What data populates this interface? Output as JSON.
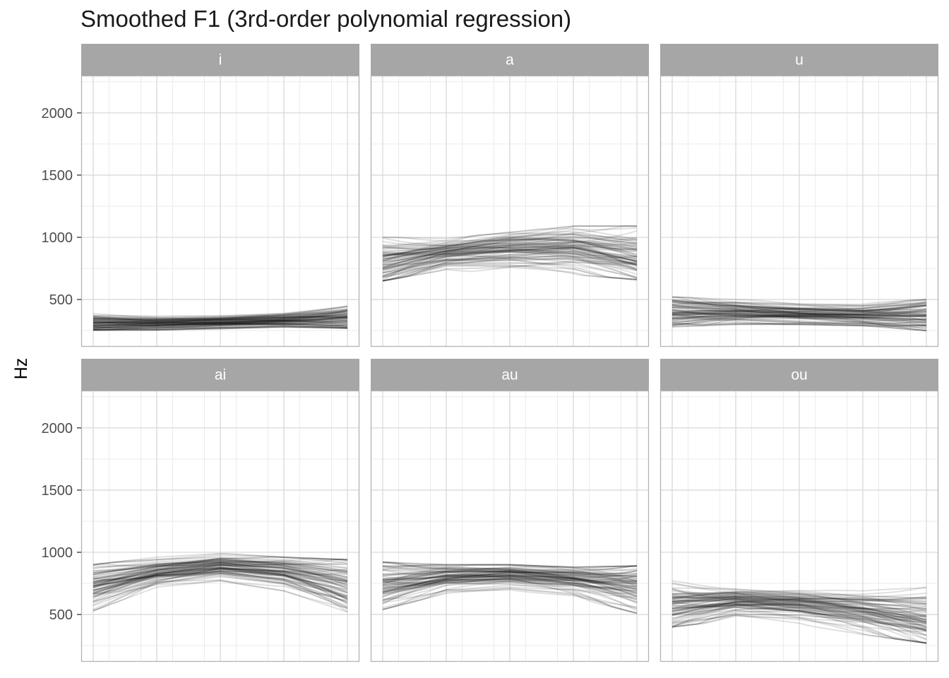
{
  "chart_data": {
    "type": "line",
    "title": "Smoothed F1 (3rd-order polynomial regression)",
    "xlabel": "",
    "ylabel": "Hz",
    "x_range": [
      0,
      1
    ],
    "ylim": [
      120,
      2300
    ],
    "y_ticks": [
      500,
      1000,
      1500,
      2000
    ],
    "y_tick_labels": [
      "500",
      "1000",
      "1500",
      "2000"
    ],
    "x_tick_labels": [],
    "grid": true,
    "line_color": "#000000",
    "line_opacity": 0.12,
    "curves_per_panel": 80,
    "layout": {
      "rows": 2,
      "cols": 3,
      "free_scales": false
    },
    "panels": [
      {
        "label": "i",
        "mean_curve": {
          "x": [
            0,
            0.25,
            0.5,
            0.75,
            1
          ],
          "y": [
            305,
            305,
            315,
            330,
            345
          ]
        },
        "y_min": [
          255,
          255,
          265,
          280,
          270
        ],
        "y_max": [
          390,
          380,
          385,
          410,
          460
        ]
      },
      {
        "label": "a",
        "mean_curve": {
          "x": [
            0,
            0.25,
            0.5,
            0.75,
            1
          ],
          "y": [
            800,
            875,
            915,
            920,
            845
          ]
        },
        "y_min": [
          650,
          740,
          700,
          700,
          660
        ],
        "y_max": [
          1000,
          990,
          1040,
          1090,
          1090
        ]
      },
      {
        "label": "u",
        "mean_curve": {
          "x": [
            0,
            0.25,
            0.5,
            0.75,
            1
          ],
          "y": [
            400,
            400,
            385,
            375,
            380
          ]
        },
        "y_min": [
          280,
          300,
          300,
          290,
          250
        ],
        "y_max": [
          520,
          500,
          480,
          470,
          500
        ]
      },
      {
        "label": "ai",
        "mean_curve": {
          "x": [
            0,
            0.25,
            0.5,
            0.75,
            1
          ],
          "y": [
            715,
            830,
            880,
            840,
            730
          ]
        },
        "y_min": [
          530,
          720,
          770,
          690,
          520
        ],
        "y_max": [
          900,
          960,
          990,
          960,
          940
        ]
      },
      {
        "label": "au",
        "mean_curve": {
          "x": [
            0,
            0.25,
            0.5,
            0.75,
            1
          ],
          "y": [
            700,
            790,
            810,
            780,
            720
          ]
        },
        "y_min": [
          540,
          670,
          690,
          640,
          510
        ],
        "y_max": [
          920,
          900,
          900,
          880,
          890
        ]
      },
      {
        "label": "ou",
        "mean_curve": {
          "x": [
            0,
            0.25,
            0.5,
            0.75,
            1
          ],
          "y": [
            560,
            610,
            590,
            540,
            470
          ]
        },
        "y_min": [
          400,
          460,
          420,
          340,
          270
        ],
        "y_max": [
          770,
          710,
          700,
          690,
          720
        ]
      }
    ]
  }
}
